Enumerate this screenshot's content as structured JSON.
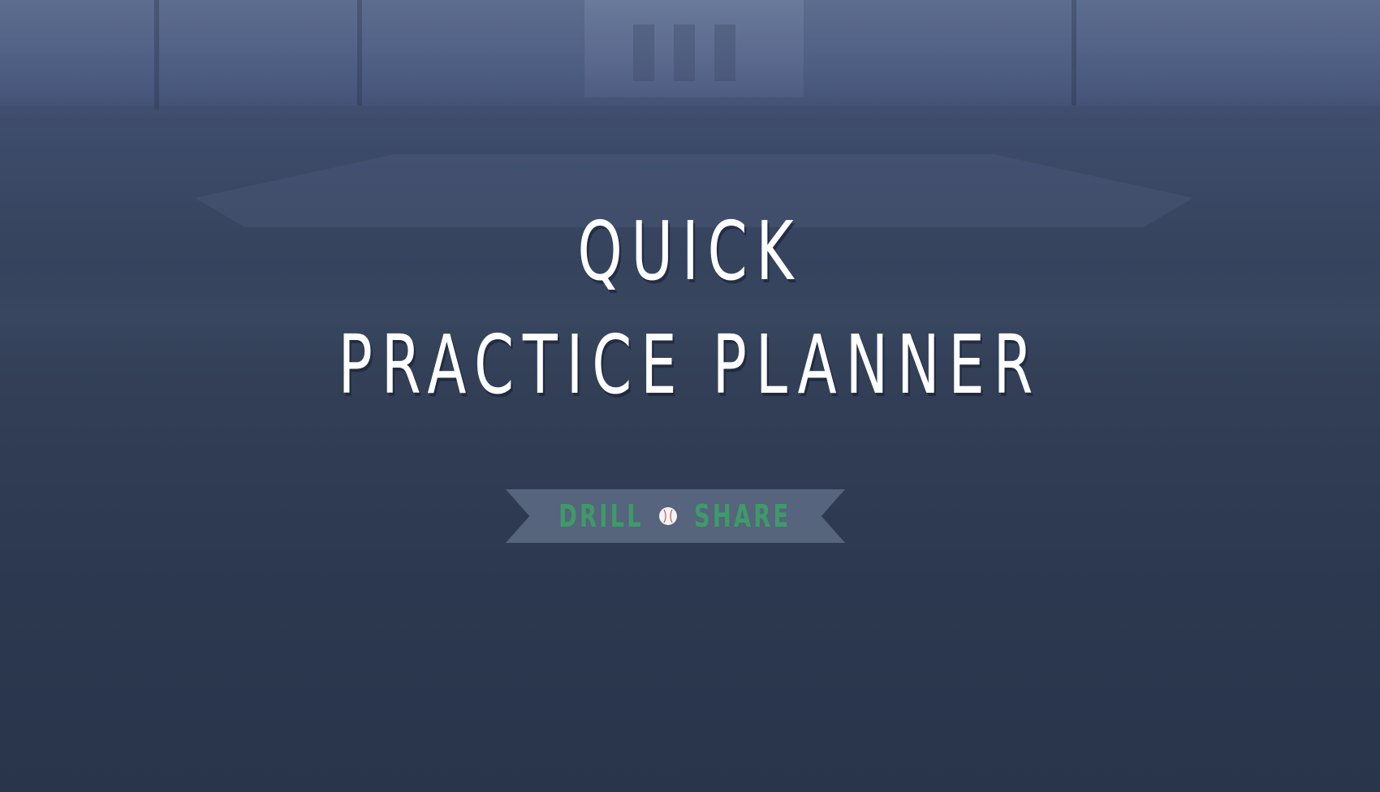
{
  "title": {
    "line1": "QUICK",
    "line2": "PRACTICE PLANNER"
  },
  "ribbon": {
    "left_word": "DRILL",
    "right_word": "SHARE",
    "separator_icon": "baseball-icon"
  },
  "colors": {
    "background": "#303d55",
    "title_text": "#ffffff",
    "brand_green": "#3f9a6a",
    "ribbon": "#7887a0"
  }
}
